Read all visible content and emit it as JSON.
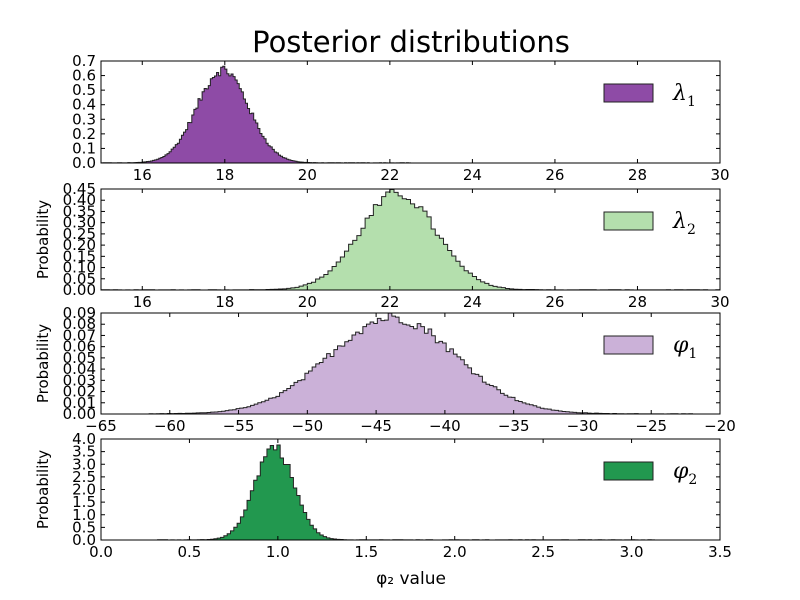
{
  "chart_data": {
    "title": "Posterior distributions",
    "xlabel": "φ₂ value",
    "ylabel": "Probability",
    "type": "histogram-stack",
    "panels": [
      {
        "legend_symbol": "λ",
        "legend_sub": "1",
        "color": "#8e4ba6",
        "xlim": [
          15,
          30
        ],
        "ylim": [
          0,
          0.7
        ],
        "xticks": [
          "16",
          "18",
          "20",
          "22",
          "24",
          "26",
          "28",
          "30"
        ],
        "xtick_values": [
          16,
          18,
          20,
          22,
          24,
          26,
          28,
          30
        ],
        "yticks": [
          "0.0",
          "0.1",
          "0.2",
          "0.3",
          "0.4",
          "0.5",
          "0.6",
          "0.7"
        ],
        "ytick_values": [
          0,
          0.1,
          0.2,
          0.3,
          0.4,
          0.5,
          0.6,
          0.7
        ],
        "show_ylabel": false,
        "support": [
          15.0,
          22.5
        ],
        "dist": {
          "kind": "normal",
          "mean": 17.95,
          "sd": 0.62,
          "peak": 0.64
        }
      },
      {
        "legend_symbol": "λ",
        "legend_sub": "2",
        "color": "#b4dfad",
        "xlim": [
          15,
          30
        ],
        "ylim": [
          0,
          0.45
        ],
        "xticks": [
          "16",
          "18",
          "20",
          "22",
          "24",
          "26",
          "28",
          "30"
        ],
        "xtick_values": [
          16,
          18,
          20,
          22,
          24,
          26,
          28,
          30
        ],
        "yticks": [
          "0.00",
          "0.05",
          "0.10",
          "0.15",
          "0.20",
          "0.25",
          "0.30",
          "0.35",
          "0.40",
          "0.45"
        ],
        "ytick_values": [
          0,
          0.05,
          0.1,
          0.15,
          0.2,
          0.25,
          0.3,
          0.35,
          0.4,
          0.45
        ],
        "show_ylabel": true,
        "support": [
          15.0,
          30.0
        ],
        "dist": {
          "kind": "normal",
          "mean": 22.2,
          "sd": 0.92,
          "peak": 0.43
        }
      },
      {
        "legend_symbol": "φ",
        "legend_sub": "1",
        "color": "#cbb1d8",
        "xlim": [
          -65,
          -20
        ],
        "ylim": [
          0,
          0.09
        ],
        "xticks": [
          "−65",
          "−60",
          "−55",
          "−50",
          "−45",
          "−40",
          "−35",
          "−30",
          "−25",
          "−20"
        ],
        "xtick_values": [
          -65,
          -60,
          -55,
          -50,
          -45,
          -40,
          -35,
          -30,
          -25,
          -20
        ],
        "yticks": [
          "0.00",
          "0.01",
          "0.02",
          "0.03",
          "0.04",
          "0.05",
          "0.06",
          "0.07",
          "0.08",
          "0.09"
        ],
        "ytick_values": [
          0,
          0.01,
          0.02,
          0.03,
          0.04,
          0.05,
          0.06,
          0.07,
          0.08,
          0.09
        ],
        "show_ylabel": true,
        "support": [
          -61.5,
          -22.0
        ],
        "dist": {
          "kind": "normal",
          "mean": -43.8,
          "sd": 4.6,
          "peak": 0.086
        }
      },
      {
        "legend_symbol": "φ",
        "legend_sub": "2",
        "color": "#22984f",
        "xlim": [
          0,
          3.5
        ],
        "ylim": [
          0,
          4.0
        ],
        "xticks": [
          "0.0",
          "0.5",
          "1.0",
          "1.5",
          "2.0",
          "2.5",
          "3.0",
          "3.5"
        ],
        "xtick_values": [
          0,
          0.5,
          1.0,
          1.5,
          2.0,
          2.5,
          3.0,
          3.5
        ],
        "yticks": [
          "0.0",
          "0.5",
          "1.0",
          "1.5",
          "2.0",
          "2.5",
          "3.0",
          "3.5",
          "4.0"
        ],
        "ytick_values": [
          0,
          0.5,
          1.0,
          1.5,
          2.0,
          2.5,
          3.0,
          3.5,
          4.0
        ],
        "show_ylabel": true,
        "support": [
          0.32,
          3.13
        ],
        "dist": {
          "kind": "normal",
          "mean": 0.98,
          "sd": 0.11,
          "peak": 3.7
        }
      }
    ]
  }
}
